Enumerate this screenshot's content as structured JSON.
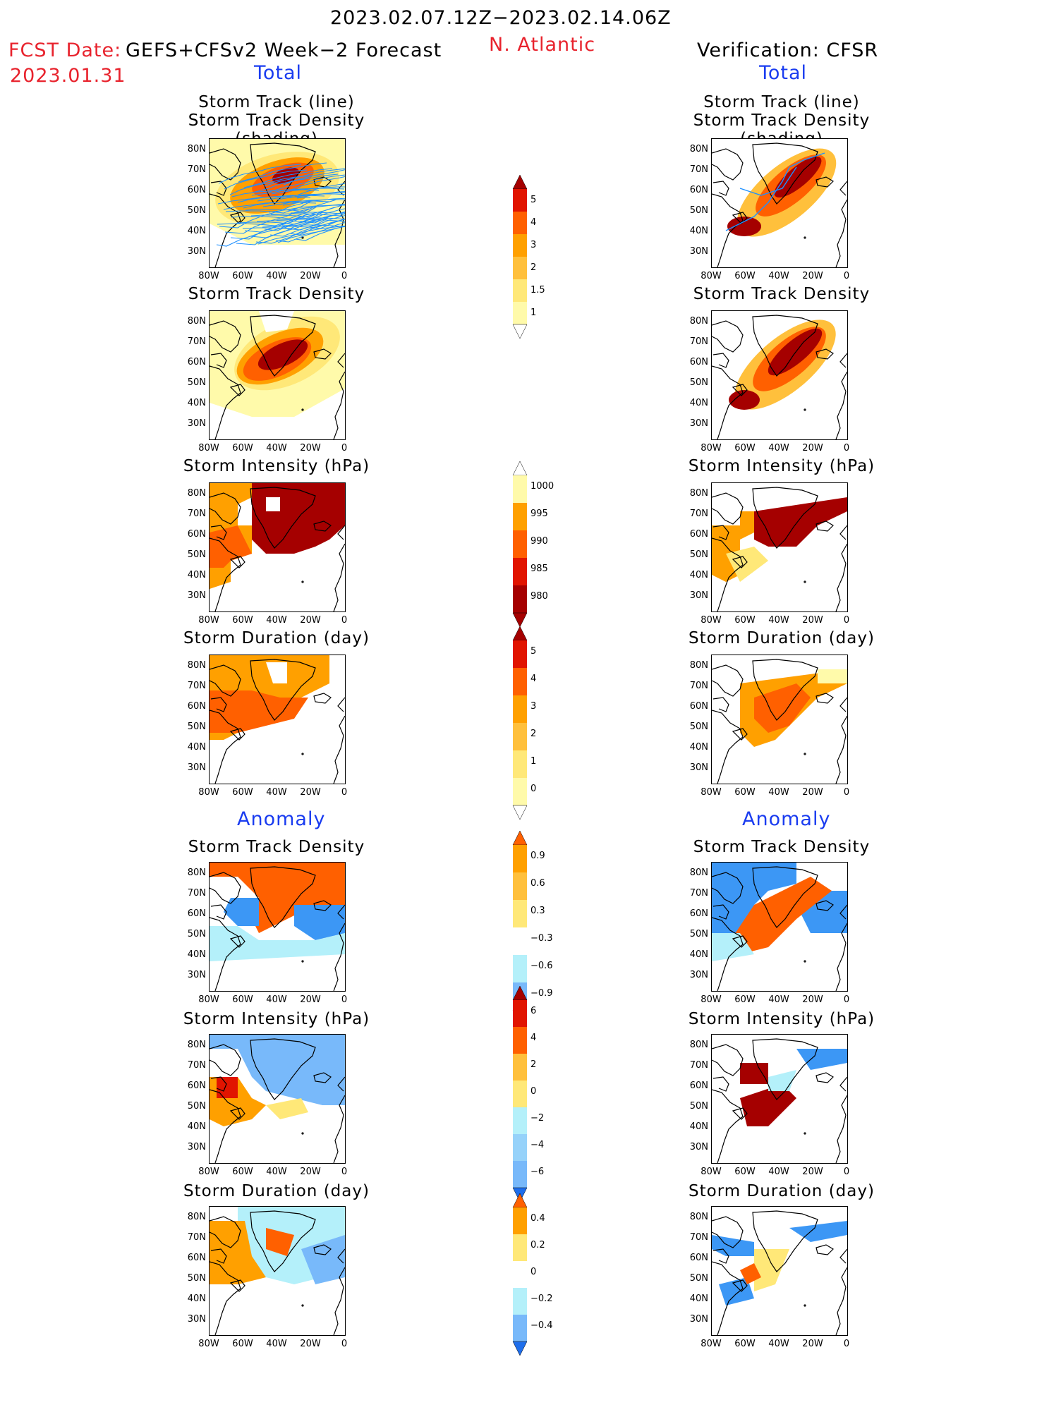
{
  "header": {
    "period": "2023.02.07.12Z−2023.02.14.06Z",
    "fcst_date_label": "FCST Date:",
    "fcst_date_value": "2023.01.31",
    "model": "GEFS+CFSv2 Week−2 Forecast",
    "region": "N. Atlantic",
    "verification": "Verification: CFSR"
  },
  "sections": {
    "total": "Total",
    "anomaly": "Anomaly"
  },
  "panel_titles": {
    "track_line": "Storm Track (line)",
    "track_density_shading": "Storm Track Density (shading)",
    "density": "Storm Track Density",
    "intensity": "Storm Intensity (hPa)",
    "duration": "Storm Duration (day)"
  },
  "axes": {
    "lat_ticks": [
      "80N",
      "70N",
      "60N",
      "50N",
      "40N",
      "30N"
    ],
    "lon_ticks": [
      "80W",
      "60W",
      "40W",
      "20W",
      "0"
    ]
  },
  "colorbars": {
    "density_total": [
      "5",
      "4",
      "3",
      "2",
      "1.5",
      "1"
    ],
    "intensity_total": [
      "1000",
      "995",
      "990",
      "985",
      "980"
    ],
    "duration_total": [
      "5",
      "4",
      "3",
      "2",
      "1",
      "0"
    ],
    "density_anomaly": [
      "0.9",
      "0.6",
      "0.3",
      "−0.3",
      "−0.6",
      "−0.9"
    ],
    "intensity_anomaly": [
      "6",
      "4",
      "2",
      "0",
      "−2",
      "−4",
      "−6"
    ],
    "duration_anomaly": [
      "0.4",
      "0.2",
      "0",
      "−0.2",
      "−0.4"
    ]
  },
  "colors": {
    "title_red": "#e8232d",
    "section_blue": "#1a3cf0",
    "track_line": "#1e90ff",
    "pal_warm": [
      "#fffaaa",
      "#ffe878",
      "#ffc03c",
      "#ffa000",
      "#ff6000",
      "#e11400",
      "#a50000"
    ],
    "pal_cool": [
      "#b4f0fa",
      "#96d2fa",
      "#78b9fa",
      "#3c97f5",
      "#1e6eeb",
      "#1464d2"
    ]
  }
}
